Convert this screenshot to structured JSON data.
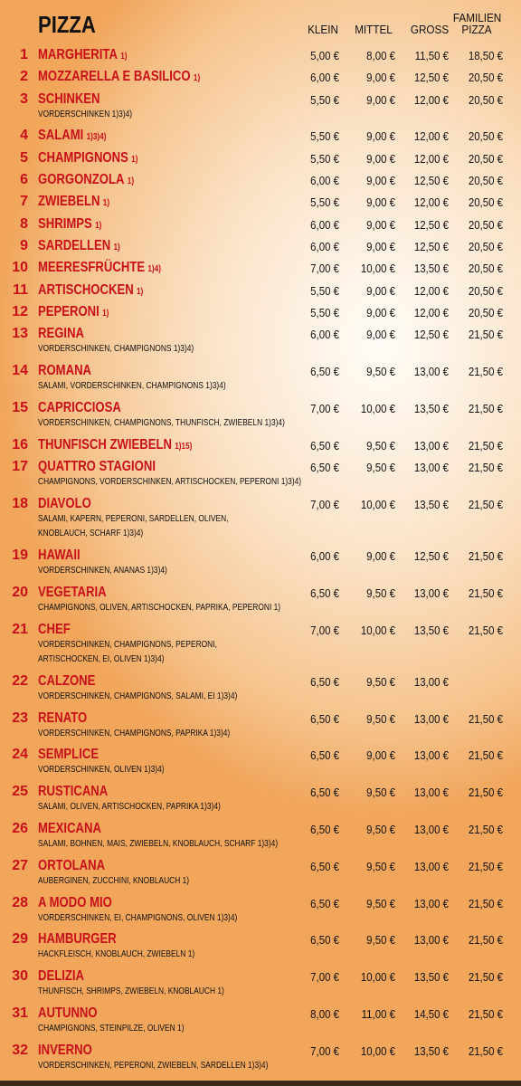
{
  "title": "PIZZA",
  "columns": [
    "KLEIN",
    "MITTEL",
    "GROSS",
    "FAMILIEN PIZZA"
  ],
  "items": [
    {
      "number": "1",
      "name": "MARGHERITA",
      "note": "1)",
      "prices": [
        "5,00 €",
        "8,00 €",
        "11,50 €",
        "18,50 €"
      ]
    },
    {
      "number": "2",
      "name": "MOZZARELLA E BASILICO",
      "note": "1)",
      "prices": [
        "6,00 €",
        "9,00 €",
        "12,50 €",
        "20,50 €"
      ]
    },
    {
      "number": "3",
      "name": "SCHINKEN",
      "description": [
        "VORDERSCHINKEN 1)3)4)"
      ],
      "prices": [
        "5,50 €",
        "9,00 €",
        "12,00 €",
        "20,50 €"
      ]
    },
    {
      "number": "4",
      "name": "SALAMI",
      "note": "1)3)4)",
      "prices": [
        "5,50 €",
        "9,00 €",
        "12,00 €",
        "20,50 €"
      ]
    },
    {
      "number": "5",
      "name": "CHAMPIGNONS",
      "note": "1)",
      "prices": [
        "5,50 €",
        "9,00 €",
        "12,00 €",
        "20,50 €"
      ]
    },
    {
      "number": "6",
      "name": "GORGONZOLA",
      "note": "1)",
      "prices": [
        "6,00 €",
        "9,00 €",
        "12,50 €",
        "20,50 €"
      ]
    },
    {
      "number": "7",
      "name": "ZWIEBELN",
      "note": "1)",
      "prices": [
        "5,50 €",
        "9,00 €",
        "12,00 €",
        "20,50 €"
      ]
    },
    {
      "number": "8",
      "name": "SHRIMPS",
      "note": "1)",
      "prices": [
        "6,00 €",
        "9,00 €",
        "12,50 €",
        "20,50 €"
      ]
    },
    {
      "number": "9",
      "name": "SARDELLEN",
      "note": "1)",
      "prices": [
        "6,00 €",
        "9,00 €",
        "12,50 €",
        "20,50 €"
      ]
    },
    {
      "number": "10",
      "name": "MEERESFRÜCHTE",
      "note": "1)4)",
      "prices": [
        "7,00 €",
        "10,00 €",
        "13,50 €",
        "20,50 €"
      ]
    },
    {
      "number": "11",
      "name": "ARTISCHOCKEN",
      "note": "1)",
      "prices": [
        "5,50 €",
        "9,00 €",
        "12,00 €",
        "20,50 €"
      ]
    },
    {
      "number": "12",
      "name": "PEPERONI",
      "note": "1)",
      "prices": [
        "5,50 €",
        "9,00 €",
        "12,00 €",
        "20,50 €"
      ]
    },
    {
      "number": "13",
      "name": "REGINA",
      "description": [
        "VORDERSCHINKEN, CHAMPIGNONS 1)3)4)"
      ],
      "prices": [
        "6,00 €",
        "9,00 €",
        "12,50 €",
        "21,50 €"
      ]
    },
    {
      "number": "14",
      "name": "ROMANA",
      "description": [
        "SALAMI, VORDERSCHINKEN, CHAMPIGNONS 1)3)4)"
      ],
      "prices": [
        "6,50 €",
        "9,50 €",
        "13,00 €",
        "21,50 €"
      ]
    },
    {
      "number": "15",
      "name": "CAPRICCIOSA",
      "description": [
        "VORDERSCHINKEN, CHAMPIGNONS, THUNFISCH, ZWIEBELN 1)3)4)"
      ],
      "prices": [
        "7,00 €",
        "10,00 €",
        "13,50 €",
        "21,50 €"
      ]
    },
    {
      "number": "16",
      "name": "THUNFISCH ZWIEBELN",
      "note": "1)15)",
      "prices": [
        "6,50 €",
        "9,50 €",
        "13,00 €",
        "21,50 €"
      ]
    },
    {
      "number": "17",
      "name": "QUATTRO STAGIONI",
      "description": [
        "CHAMPIGNONS, VORDERSCHINKEN, ARTISCHOCKEN, PEPERONI 1)3)4)"
      ],
      "prices": [
        "6,50 €",
        "9,50 €",
        "13,00 €",
        "21,50 €"
      ]
    },
    {
      "number": "18",
      "name": "DIAVOLO",
      "description": [
        "SALAMI, KAPERN, PEPERONI, SARDELLEN, OLIVEN,",
        "KNOBLAUCH, SCHARF 1)3)4)"
      ],
      "prices": [
        "7,00 €",
        "10,00 €",
        "13,50 €",
        "21,50 €"
      ]
    },
    {
      "number": "19",
      "name": "HAWAII",
      "description": [
        "VORDERSCHINKEN, ANANAS 1)3)4)"
      ],
      "prices": [
        "6,00 €",
        "9,00 €",
        "12,50 €",
        "21,50 €"
      ]
    },
    {
      "number": "20",
      "name": "VEGETARIA",
      "description": [
        "CHAMPIGNONS, OLIVEN, ARTISCHOCKEN, PAPRIKA, PEPERONI 1)"
      ],
      "prices": [
        "6,50 €",
        "9,50 €",
        "13,00 €",
        "21,50 €"
      ]
    },
    {
      "number": "21",
      "name": "CHEF",
      "description": [
        "VORDERSCHINKEN, CHAMPIGNONS, PEPERONI,",
        "ARTISCHOCKEN, EI, OLIVEN 1)3)4)"
      ],
      "prices": [
        "7,00 €",
        "10,00 €",
        "13,50 €",
        "21,50 €"
      ]
    },
    {
      "number": "22",
      "name": "CALZONE",
      "description": [
        "VORDERSCHINKEN, CHAMPIGNONS, SALAMI, EI 1)3)4)"
      ],
      "prices": [
        "6,50 €",
        "9,50 €",
        "13,00 €"
      ]
    },
    {
      "number": "23",
      "name": "RENATO",
      "description": [
        "VORDERSCHINKEN, CHAMPIGNONS, PAPRIKA 1)3)4)"
      ],
      "prices": [
        "6,50 €",
        "9,50 €",
        "13,00 €",
        "21,50 €"
      ]
    },
    {
      "number": "24",
      "name": "SEMPLICE",
      "description": [
        "VORDERSCHINKEN, OLIVEN 1)3)4)"
      ],
      "prices": [
        "6,50 €",
        "9,00 €",
        "13,00 €",
        "21,50 €"
      ]
    },
    {
      "number": "25",
      "name": "RUSTICANA",
      "description": [
        "SALAMI, OLIVEN, ARTISCHOCKEN, PAPRIKA 1)3)4)"
      ],
      "prices": [
        "6,50 €",
        "9,50 €",
        "13,00 €",
        "21,50 €"
      ]
    },
    {
      "number": "26",
      "name": "MEXICANA",
      "description": [
        "SALAMI, BOHNEN, MAIS, ZWIEBELN, KNOBLAUCH, SCHARF 1)3)4)"
      ],
      "prices": [
        "6,50 €",
        "9,50 €",
        "13,00 €",
        "21,50 €"
      ]
    },
    {
      "number": "27",
      "name": "ORTOLANA",
      "description": [
        "AUBERGINEN, ZUCCHINI, KNOBLAUCH 1)"
      ],
      "prices": [
        "6,50 €",
        "9,50 €",
        "13,00 €",
        "21,50 €"
      ]
    },
    {
      "number": "28",
      "name": "A MODO MIO",
      "description": [
        "VORDERSCHINKEN, EI, CHAMPIGNONS, OLIVEN 1)3)4)"
      ],
      "prices": [
        "6,50 €",
        "9,50 €",
        "13,00 €",
        "21,50 €"
      ]
    },
    {
      "number": "29",
      "name": "HAMBURGER",
      "description": [
        "HACKFLEISCH, KNOBLAUCH, ZWIEBELN 1)"
      ],
      "prices": [
        "6,50 €",
        "9,50 €",
        "13,00 €",
        "21,50 €"
      ]
    },
    {
      "number": "30",
      "name": "DELIZIA",
      "description": [
        "THUNFISCH, SHRIMPS, ZWIEBELN, KNOBLAUCH 1)"
      ],
      "prices": [
        "7,00 €",
        "10,00 €",
        "13,50 €",
        "21,50 €"
      ]
    },
    {
      "number": "31",
      "name": "AUTUNNO",
      "description": [
        "CHAMPIGNONS, STEINPILZE, OLIVEN 1)"
      ],
      "prices": [
        "8,00 €",
        "11,00 €",
        "14,50 €",
        "21,50 €"
      ]
    },
    {
      "number": "32",
      "name": "INVERNO",
      "description": [
        "VORDERSCHINKEN, PEPERONI, ZWIEBELN, SARDELLEN 1)3)4)"
      ],
      "prices": [
        "7,00 €",
        "10,00 €",
        "13,50 €",
        "21,50 €"
      ]
    }
  ]
}
